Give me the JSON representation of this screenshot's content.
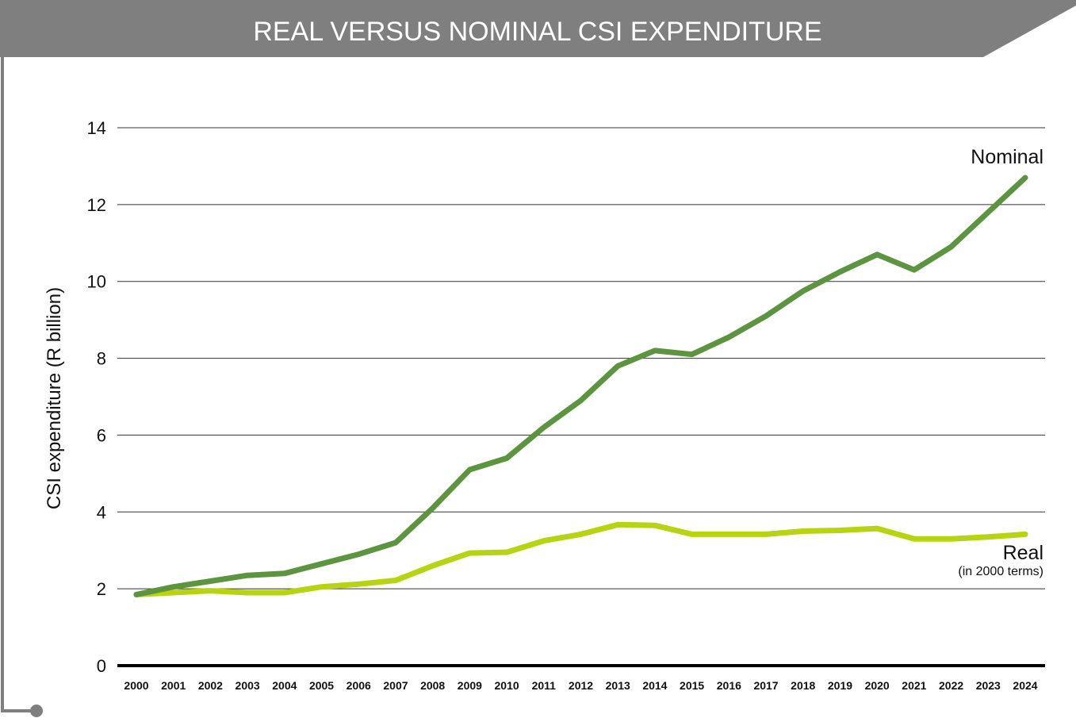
{
  "colors": {
    "title_bar": "#7f7f7f",
    "frame": "#7f7f7f",
    "nominal": "#5d9440",
    "real": "#b8d310",
    "gridline": "#333333",
    "text": "#111111"
  },
  "chart_data": {
    "type": "line",
    "title": "REAL VERSUS NOMINAL CSI EXPENDITURE",
    "ylabel": "CSI expenditure (R billion)",
    "xlabel": "",
    "ylim": [
      0,
      14
    ],
    "yticks": [
      0,
      2,
      4,
      6,
      8,
      10,
      12,
      14
    ],
    "grid": true,
    "x": [
      "2000",
      "2001",
      "2002",
      "2003",
      "2004",
      "2005",
      "2006",
      "2007",
      "2008",
      "2009",
      "2010",
      "2011",
      "2012",
      "2013",
      "2014",
      "2015",
      "2016",
      "2017",
      "2018",
      "2019",
      "2020",
      "2021",
      "2022",
      "2023",
      "2024"
    ],
    "series": [
      {
        "name": "Nominal",
        "color": "#5d9440",
        "values": [
          1.85,
          2.05,
          2.2,
          2.35,
          2.4,
          2.65,
          2.9,
          3.2,
          4.1,
          5.1,
          5.4,
          6.2,
          6.9,
          7.8,
          8.2,
          8.1,
          8.55,
          9.1,
          9.75,
          10.25,
          10.7,
          10.3,
          10.9,
          11.8,
          12.7
        ]
      },
      {
        "name": "Real",
        "sublabel": "(in 2000 terms)",
        "color": "#b8d310",
        "values": [
          1.85,
          1.9,
          1.95,
          1.9,
          1.9,
          2.05,
          2.12,
          2.22,
          2.6,
          2.93,
          2.95,
          3.25,
          3.42,
          3.67,
          3.65,
          3.42,
          3.42,
          3.42,
          3.5,
          3.52,
          3.57,
          3.3,
          3.3,
          3.35,
          3.42
        ]
      }
    ]
  }
}
